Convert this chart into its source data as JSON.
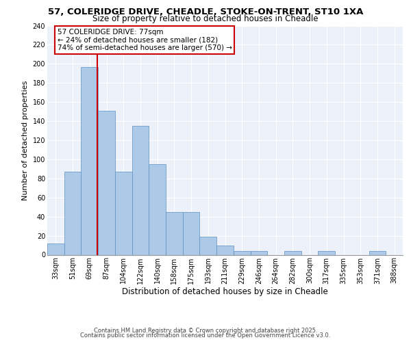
{
  "title1": "57, COLERIDGE DRIVE, CHEADLE, STOKE-ON-TRENT, ST10 1XA",
  "title2": "Size of property relative to detached houses in Cheadle",
  "xlabel": "Distribution of detached houses by size in Cheadle",
  "ylabel": "Number of detached properties",
  "categories": [
    "33sqm",
    "51sqm",
    "69sqm",
    "87sqm",
    "104sqm",
    "122sqm",
    "140sqm",
    "158sqm",
    "175sqm",
    "193sqm",
    "211sqm",
    "229sqm",
    "246sqm",
    "264sqm",
    "282sqm",
    "300sqm",
    "317sqm",
    "335sqm",
    "353sqm",
    "371sqm",
    "388sqm"
  ],
  "values": [
    12,
    87,
    197,
    151,
    87,
    135,
    95,
    45,
    45,
    19,
    10,
    4,
    4,
    0,
    4,
    0,
    4,
    0,
    0,
    4,
    0
  ],
  "bar_color": "#adc9e8",
  "bar_edge_color": "#5a8fbe",
  "annotation_text": "57 COLERIDGE DRIVE: 77sqm\n← 24% of detached houses are smaller (182)\n74% of semi-detached houses are larger (570) →",
  "annotation_box_color": "#ffffff",
  "annotation_box_edge": "#cc0000",
  "red_line_color": "#cc0000",
  "ylim": [
    0,
    240
  ],
  "yticks": [
    0,
    20,
    40,
    60,
    80,
    100,
    120,
    140,
    160,
    180,
    200,
    220,
    240
  ],
  "footnote1": "Contains HM Land Registry data © Crown copyright and database right 2025.",
  "footnote2": "Contains public sector information licensed under the Open Government Licence v3.0.",
  "background_color": "#edf2fa",
  "grid_color": "#ffffff",
  "title1_fontsize": 9.5,
  "title2_fontsize": 8.5,
  "xlabel_fontsize": 8.5,
  "ylabel_fontsize": 8.0,
  "tick_fontsize": 7.0,
  "annot_fontsize": 7.5,
  "footnote_fontsize": 6.0
}
